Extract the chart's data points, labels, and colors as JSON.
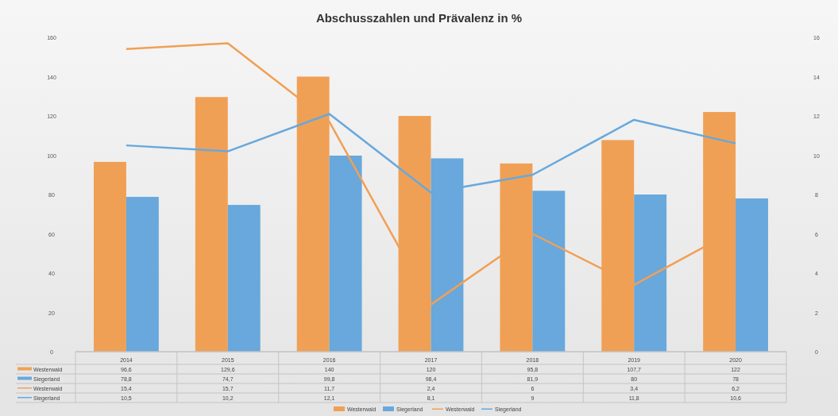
{
  "chart_data": {
    "type": "bar",
    "title": "Abschusszahlen und Prävalenz in %",
    "categories": [
      "2014",
      "2015",
      "2016",
      "2017",
      "2018",
      "2019",
      "2020"
    ],
    "series": [
      {
        "name": "Westerwald",
        "color": "#f0a055",
        "values": [
          96.6,
          129.6,
          140,
          120,
          95.8,
          107.7,
          122
        ],
        "value_labels": [
          "96,6",
          "129,6",
          "140",
          "120",
          "95,8",
          "107,7",
          "122"
        ]
      },
      {
        "name": "Siegerland",
        "color": "#68a8dc",
        "values": [
          78.8,
          74.7,
          99.8,
          98.4,
          81.9,
          80,
          78
        ],
        "value_labels": [
          "78,8",
          "74,7",
          "99,8",
          "98,4",
          "81,9",
          "80",
          "78"
        ]
      },
      {
        "name": "Westerwald",
        "type": "line",
        "axis": "y2",
        "color": "#f0a055",
        "values": [
          15.4,
          15.7,
          11.7,
          2.4,
          6,
          3.4,
          6.2
        ],
        "value_labels": [
          "15,4",
          "15,7",
          "11,7",
          "2,4",
          "6",
          "3,4",
          "6,2"
        ]
      },
      {
        "name": "Siegerland",
        "type": "line",
        "axis": "y2",
        "color": "#68a8dc",
        "values": [
          10.5,
          10.2,
          12.1,
          8.1,
          9,
          11.8,
          10.6
        ],
        "value_labels": [
          "10,5",
          "10,2",
          "12,1",
          "8,1",
          "9",
          "11,8",
          "10,6"
        ]
      }
    ],
    "ylim": [
      0,
      160
    ],
    "yticks": [
      0,
      20,
      40,
      60,
      80,
      100,
      120,
      140,
      160
    ],
    "y2lim": [
      0,
      16
    ],
    "y2ticks": [
      0,
      2,
      4,
      6,
      8,
      10,
      12,
      14,
      16
    ],
    "legend": "bottom",
    "grid": false
  }
}
